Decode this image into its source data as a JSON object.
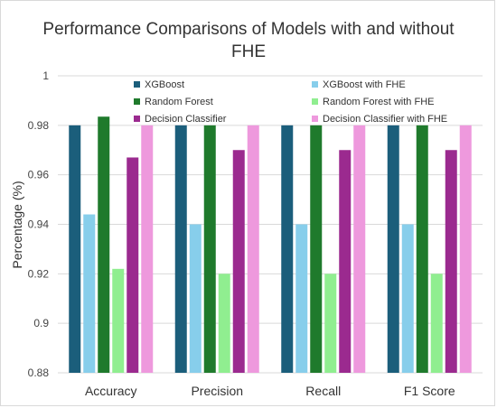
{
  "chart_data": {
    "type": "bar",
    "title_line1": "Performance Comparisons of Models with and without",
    "title_line2": "FHE",
    "ylabel": "Percentage (%)",
    "xlabel": "",
    "ylim": [
      0.88,
      1.0
    ],
    "yticks": [
      "0.88",
      "0.9",
      "0.92",
      "0.94",
      "0.96",
      "0.98",
      "1"
    ],
    "categories": [
      "Accuracy",
      "Precision",
      "Recall",
      "F1 Score"
    ],
    "grid": true,
    "legend_position": "top",
    "series": [
      {
        "name": "XGBoost",
        "color": "#1b5e7b",
        "values": [
          0.98,
          0.98,
          0.98,
          0.98
        ]
      },
      {
        "name": "XGBoost with FHE",
        "color": "#87ceeb",
        "values": [
          0.944,
          0.94,
          0.94,
          0.94
        ]
      },
      {
        "name": "Random Forest",
        "color": "#1f7a2c",
        "values": [
          0.9835,
          0.98,
          0.98,
          0.98
        ]
      },
      {
        "name": "Random Forest with FHE",
        "color": "#90ee90",
        "values": [
          0.922,
          0.92,
          0.92,
          0.92
        ]
      },
      {
        "name": "Decision Classifier",
        "color": "#9b2a8f",
        "values": [
          0.967,
          0.97,
          0.97,
          0.97
        ]
      },
      {
        "name": "Decision Classifier with FHE",
        "color": "#ee99dd",
        "values": [
          0.98,
          0.98,
          0.98,
          0.98
        ]
      }
    ]
  }
}
